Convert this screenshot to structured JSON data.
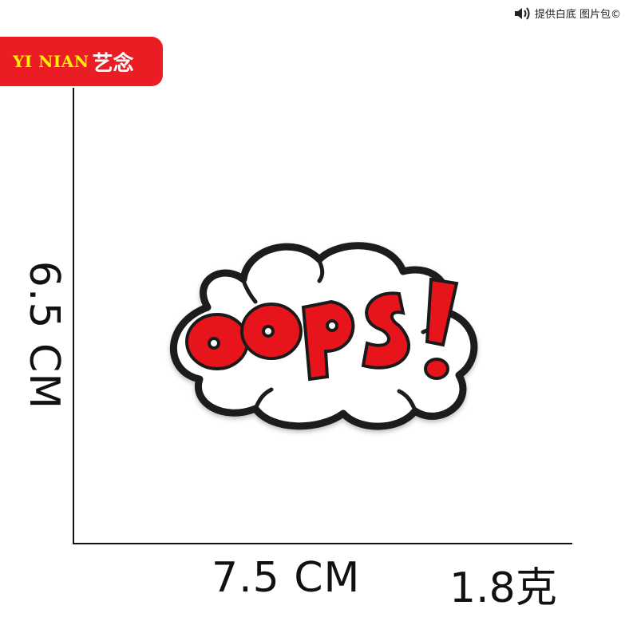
{
  "brand": {
    "latin": "YI NIAN",
    "cjk": "艺念"
  },
  "watermark": {
    "text": "提供白底 图片包©",
    "icon": "speaker-icon"
  },
  "dimensions": {
    "width": "7.5 CM",
    "height": "6.5 CM",
    "weight": "1.8克"
  },
  "patch": {
    "text": "OOPS!",
    "fill_color": "#e8141c",
    "outline_color": "#1a1a1a",
    "background_color": "#ffffff"
  }
}
